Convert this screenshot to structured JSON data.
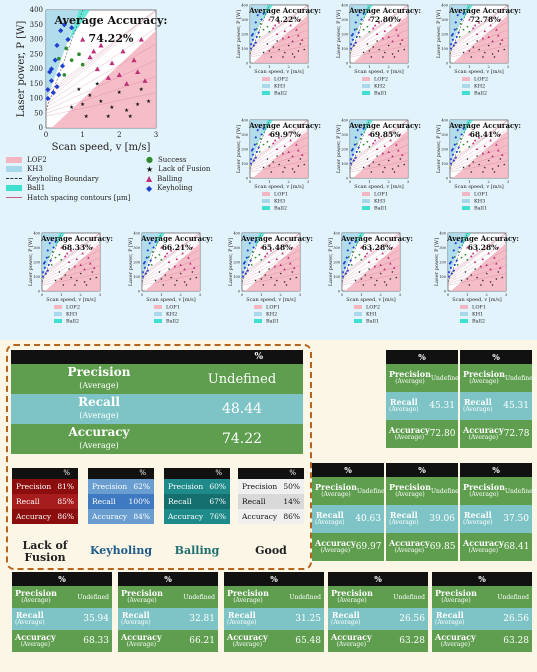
{
  "chart_data": [
    {
      "type": "scatter",
      "title": "Average Accuracy:",
      "accuracy": "74.22%",
      "xlabel": "Scan speed, v [m/s]",
      "ylabel": "Laser power, P [W]",
      "xlim": [
        0,
        3
      ],
      "ylim": [
        0,
        400
      ],
      "xticks": [
        "0",
        "1",
        "2",
        "3"
      ],
      "yticks": [
        "0",
        "50",
        "100",
        "150",
        "200",
        "250",
        "300",
        "350",
        "400"
      ],
      "legend_left": [
        "LOF2",
        "KH3",
        "Keyholing Boundary",
        "Ball1",
        "Hatch spacing contours [μm]"
      ],
      "legend_right": [
        "Success",
        "Lack of Fusion",
        "Balling",
        "Keyholing"
      ],
      "series": [
        {
          "name": "Success",
          "points": [
            [
              0.35,
              235
            ],
            [
              0.55,
              270
            ],
            [
              0.7,
              230
            ],
            [
              0.9,
              250
            ],
            [
              0.5,
              180
            ],
            [
              1.0,
              215
            ]
          ]
        },
        {
          "name": "Lack of Fusion",
          "points": [
            [
              0.9,
              130
            ],
            [
              1.2,
              110
            ],
            [
              1.5,
              90
            ],
            [
              1.8,
              70
            ],
            [
              2.2,
              60
            ],
            [
              2.5,
              80
            ],
            [
              1.0,
              80
            ],
            [
              1.4,
              150
            ],
            [
              2.0,
              120
            ],
            [
              2.6,
              130
            ],
            [
              1.7,
              40
            ],
            [
              2.3,
              40
            ],
            [
              1.1,
              40
            ],
            [
              0.7,
              70
            ],
            [
              2.8,
              90
            ]
          ]
        },
        {
          "name": "Balling",
          "points": [
            [
              1.0,
              300
            ],
            [
              1.2,
              240
            ],
            [
              1.5,
              280
            ],
            [
              1.8,
              220
            ],
            [
              2.1,
              260
            ],
            [
              2.4,
              230
            ],
            [
              2.6,
              300
            ],
            [
              1.4,
              200
            ],
            [
              2.0,
              180
            ],
            [
              2.5,
              190
            ],
            [
              1.7,
              170
            ],
            [
              2.2,
              150
            ],
            [
              2.7,
              160
            ],
            [
              1.3,
              260
            ]
          ]
        },
        {
          "name": "Keyholing",
          "points": [
            [
              0.05,
              100
            ],
            [
              0.05,
              130
            ],
            [
              0.15,
              160
            ],
            [
              0.15,
              200
            ],
            [
              0.25,
              230
            ],
            [
              0.3,
              280
            ],
            [
              0.4,
              330
            ],
            [
              0.5,
              350
            ],
            [
              0.2,
              120
            ],
            [
              0.35,
              180
            ],
            [
              0.45,
              210
            ],
            [
              0.1,
              190
            ],
            [
              0.6,
              300
            ],
            [
              0.7,
              340
            ],
            [
              0.3,
              140
            ]
          ]
        }
      ]
    },
    {
      "type": "scatter",
      "title": "Average Accuracy:",
      "accuracy": "74.22%",
      "xlabel": "Scan speed, v [m/s]",
      "ylabel": "Laser power, P [W]",
      "legend": [
        "LOF2",
        "KH3",
        "Ball2"
      ]
    },
    {
      "type": "scatter",
      "title": "Average Accuracy:",
      "accuracy": "72.80%",
      "xlabel": "Scan speed, v [m/s]",
      "ylabel": "Laser power, P [W]",
      "legend": [
        "LOF2",
        "KH2",
        "Ball1"
      ]
    },
    {
      "type": "scatter",
      "title": "Average Accuracy:",
      "accuracy": "72.78%",
      "xlabel": "Scan speed, v [m/s]",
      "ylabel": "Laser power, P [W]",
      "legend": [
        "LOF2",
        "KH2",
        "Ball2"
      ]
    },
    {
      "type": "scatter",
      "title": "Average Accuracy:",
      "accuracy": "69.97%",
      "xlabel": "Scan speed, v [m/s]",
      "ylabel": "Laser power, P [W]",
      "legend": [
        "LOF1",
        "KH3",
        "Ball2"
      ]
    },
    {
      "type": "scatter",
      "title": "Average Accuracy:",
      "accuracy": "69.85%",
      "xlabel": "Scan speed, v [m/s]",
      "ylabel": "Laser power, P [W]",
      "legend": [
        "LOF1",
        "KH3",
        "Ball1"
      ]
    },
    {
      "type": "scatter",
      "title": "Average Accuracy:",
      "accuracy": "68.41%",
      "xlabel": "Scan speed, v [m/s]",
      "ylabel": "Laser power, P [W]",
      "legend": [
        "LOF1",
        "KH3",
        "Ball1"
      ]
    },
    {
      "type": "scatter",
      "title": "Average Accuracy:",
      "accuracy": "68.33%",
      "xlabel": "Scan speed, v [m/s]",
      "ylabel": "Laser power, P [W]",
      "legend": [
        "LOF2",
        "KH3",
        "Ball2"
      ]
    },
    {
      "type": "scatter",
      "title": "Average Accuracy:",
      "accuracy": "66.21%",
      "xlabel": "Scan speed, v [m/s]",
      "ylabel": "Laser power, P [W]",
      "legend": [
        "LOF1",
        "KH2",
        "Ball2"
      ]
    },
    {
      "type": "scatter",
      "title": "Average Accuracy:",
      "accuracy": "65.48%",
      "xlabel": "Scan speed, v [m/s]",
      "ylabel": "Laser power, P [W]",
      "legend": [
        "LOF1",
        "KH2",
        "Ball1"
      ]
    },
    {
      "type": "scatter",
      "title": "Average Accuracy:",
      "accuracy": "63.28%",
      "xlabel": "Scan speed, v [m/s]",
      "ylabel": "Laser power, P [W]",
      "legend": [
        "LOF2",
        "KH1",
        "Ball1"
      ]
    },
    {
      "type": "scatter",
      "title": "Average Accuracy:",
      "accuracy": "63.28%",
      "xlabel": "Scan speed, v [m/s]",
      "ylabel": "Laser power, P [W]",
      "legend": [
        "LOF1",
        "KH1",
        "Ball2"
      ]
    },
    {
      "type": "table",
      "title": "Average metrics",
      "header": "%",
      "rows": [
        {
          "label": "Precision",
          "sub": "(Average)",
          "value": "Undefined"
        },
        {
          "label": "Recall",
          "sub": "(Average)",
          "value": "48.44"
        },
        {
          "label": "Accuracy",
          "sub": "(Average)",
          "value": "74.22"
        }
      ]
    }
  ],
  "class_tables": [
    {
      "title": "Lack of Fusion",
      "rows": [
        [
          "Precision",
          "81%"
        ],
        [
          "Recall",
          "85%"
        ],
        [
          "Accuracy",
          "86%"
        ]
      ],
      "colors": [
        "#8b0d0d",
        "#a71d1d",
        "#8b0d0d"
      ]
    },
    {
      "title": "Keyholing",
      "rows": [
        [
          "Precision",
          "62%"
        ],
        [
          "Recall",
          "100%"
        ],
        [
          "Accuracy",
          "84%"
        ]
      ],
      "colors": [
        "#6a9ed0",
        "#3f79c2",
        "#6a9ed0"
      ]
    },
    {
      "title": "Balling",
      "rows": [
        [
          "Precision",
          "60%"
        ],
        [
          "Recall",
          "67%"
        ],
        [
          "Accuracy",
          "76%"
        ]
      ],
      "colors": [
        "#1f8a8a",
        "#156f6f",
        "#1f8a8a"
      ]
    },
    {
      "title": "Good",
      "rows": [
        [
          "Precision",
          "50%"
        ],
        [
          "Recall",
          "14%"
        ],
        [
          "Accuracy",
          "86%"
        ]
      ],
      "colors": [
        "#f0f0f0",
        "#d9d9d9",
        "#f0f0f0"
      ]
    }
  ],
  "small_tables": [
    {
      "precision": "Undefined",
      "recall": "45.31",
      "accuracy": "72.80"
    },
    {
      "precision": "Undefined",
      "recall": "45.31",
      "accuracy": "72.78"
    },
    {
      "precision": "Undefined",
      "recall": "48.44",
      "accuracy": "74.22"
    },
    {
      "precision": "Undefined",
      "recall": "40.63",
      "accuracy": "69.97"
    },
    {
      "precision": "Undefined",
      "recall": "39.06",
      "accuracy": "69.85"
    },
    {
      "precision": "Undefined",
      "recall": "37.50",
      "accuracy": "68.41"
    },
    {
      "precision": "Undefined",
      "recall": "35.94",
      "accuracy": "68.33"
    },
    {
      "precision": "Undefined",
      "recall": "32.81",
      "accuracy": "66.21"
    },
    {
      "precision": "Undefined",
      "recall": "31.25",
      "accuracy": "65.48"
    },
    {
      "precision": "Undefined",
      "recall": "26.56",
      "accuracy": "63.28"
    },
    {
      "precision": "Undefined",
      "recall": "26.56",
      "accuracy": "63.28"
    }
  ],
  "table_labels": {
    "header": "%",
    "precision": "Precision",
    "recall": "Recall",
    "accuracy": "Accuracy",
    "avg": "(Average)"
  },
  "colors": {
    "lof": "#f4b6c2",
    "kh": "#a8d8ea",
    "ball": "#40e0d0",
    "success": "#2e8b2e",
    "lof_marker": "#111111",
    "balling": "#c0307a",
    "keyholing": "#1f3fd0"
  }
}
